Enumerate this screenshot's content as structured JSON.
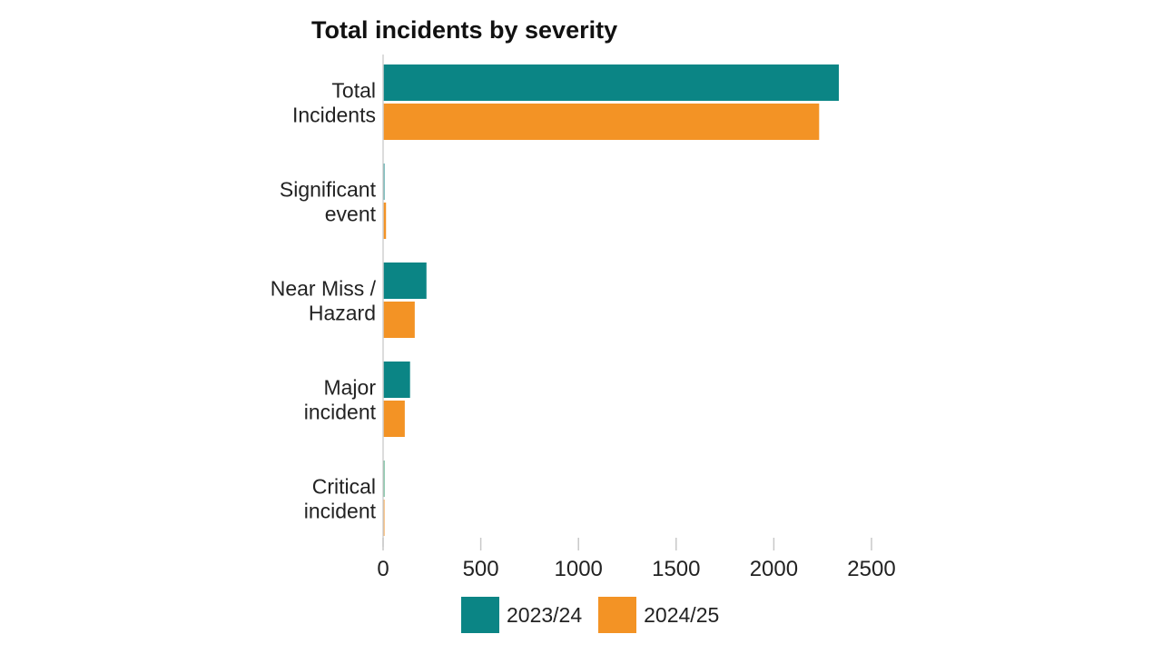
{
  "colors": {
    "series_2023": "#0b8585",
    "series_2024": "#f39325",
    "critical_2023": "#2b9d6a"
  },
  "chart_data": {
    "type": "bar",
    "orientation": "horizontal",
    "title": "Total incidents by severity",
    "categories": [
      "Total Incidents",
      "Significant event",
      "Near Miss / Hazard",
      "Major incident",
      "Critical incident"
    ],
    "category_lines": [
      [
        "Total",
        "Incidents"
      ],
      [
        "Significant",
        "event"
      ],
      [
        "Near Miss /",
        "Hazard"
      ],
      [
        "Major",
        "incident"
      ],
      [
        "Critical",
        "incident"
      ]
    ],
    "series": [
      {
        "name": "2023/24",
        "values": [
          2333,
          3,
          222,
          138,
          7
        ]
      },
      {
        "name": "2024/25",
        "values": [
          2232,
          15,
          162,
          111,
          6
        ]
      }
    ],
    "xlim": [
      0,
      2500
    ],
    "xticks": [
      "0",
      "500",
      "1000",
      "1500",
      "2000",
      "2500"
    ],
    "grid": false,
    "legend_position": "bottom"
  }
}
